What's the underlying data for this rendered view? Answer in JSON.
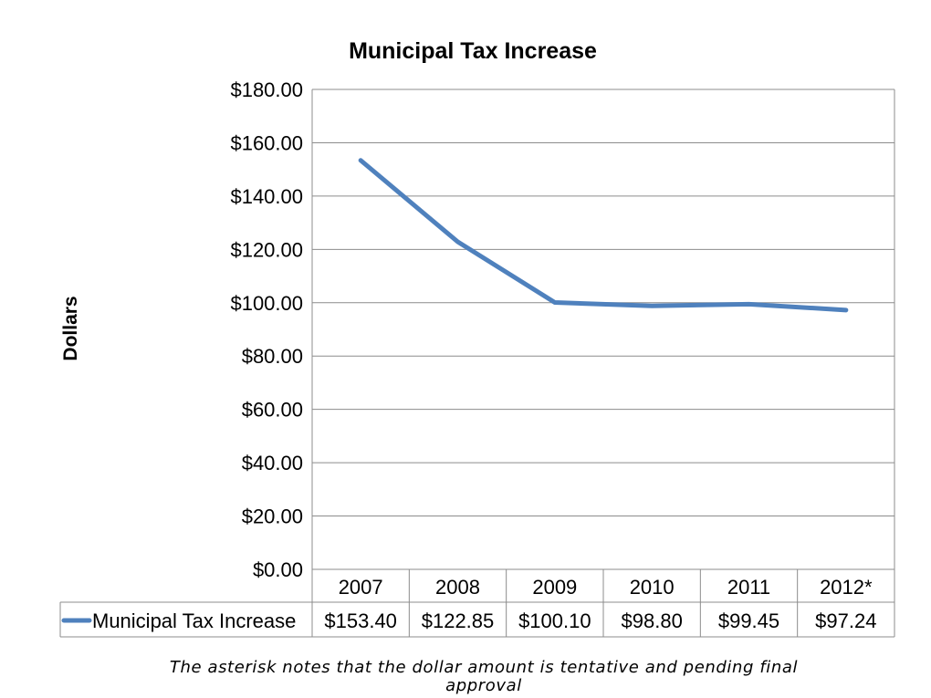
{
  "chart_data": {
    "type": "line",
    "title": "Municipal Tax Increase",
    "ylabel": "Dollars",
    "xlabel": "",
    "categories": [
      "2007",
      "2008",
      "2009",
      "2010",
      "2011",
      "2012*"
    ],
    "ylim": [
      0,
      180
    ],
    "yticks": [
      0,
      20,
      40,
      60,
      80,
      100,
      120,
      140,
      160,
      180
    ],
    "ytick_labels": [
      "$0.00",
      "$20.00",
      "$40.00",
      "$60.00",
      "$80.00",
      "$100.00",
      "$120.00",
      "$140.00",
      "$160.00",
      "$180.00"
    ],
    "grid": true,
    "series": [
      {
        "name": "Municipal Tax Increase",
        "values": [
          153.4,
          122.85,
          100.1,
          98.8,
          99.45,
          97.24
        ],
        "labels": [
          "$153.40",
          "$122.85",
          "$100.10",
          "$98.80",
          "$99.45",
          "$97.24"
        ],
        "color": "#4f81bd"
      }
    ],
    "data_table": true
  },
  "footnote": "The asterisk notes that the dollar amount is tentative and pending final approval"
}
